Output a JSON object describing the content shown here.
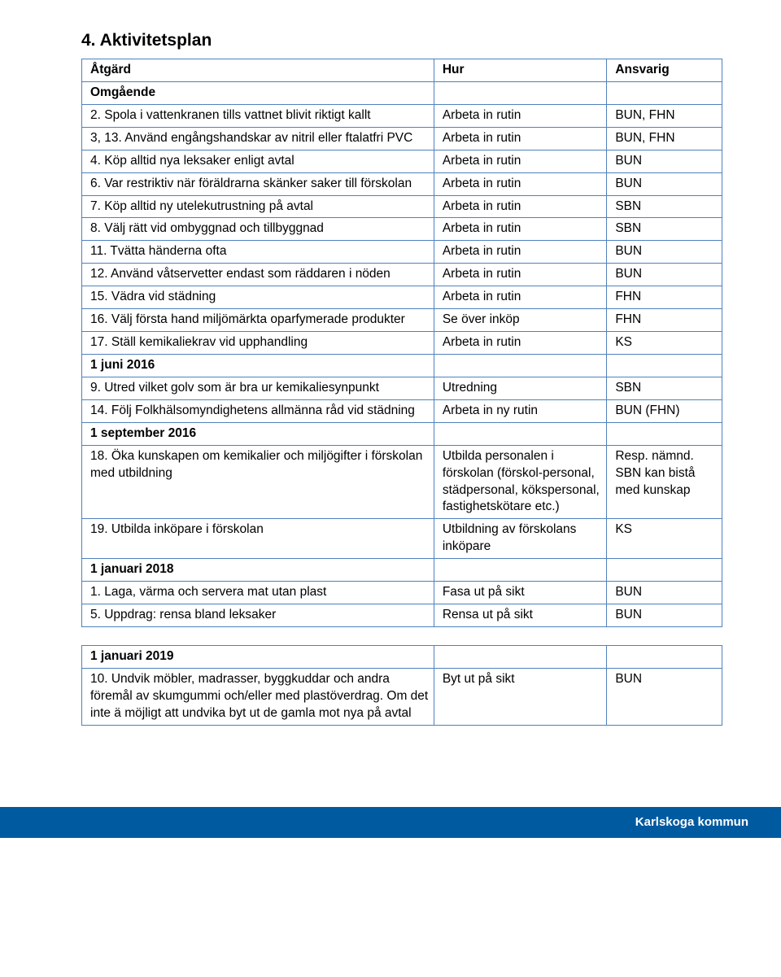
{
  "title": "4. Aktivitetsplan",
  "colors": {
    "border": "#4f81bd",
    "footer_bg": "#005aa0",
    "footer_text": "#ffffff",
    "text": "#000000"
  },
  "headers": {
    "a": "Åtgärd",
    "b": "Hur",
    "c": "Ansvarig"
  },
  "rows": [
    {
      "type": "section",
      "a": "Omgående"
    },
    {
      "a": "2. Spola i vattenkranen tills vattnet blivit riktigt kallt",
      "b": "Arbeta in rutin",
      "c": "BUN, FHN",
      "indent": true
    },
    {
      "a": "3, 13. Använd engångshandskar av nitril eller ftalatfri PVC",
      "b": "Arbeta in rutin",
      "c": "BUN, FHN",
      "indent": true
    },
    {
      "a": "4. Köp alltid nya leksaker enligt avtal",
      "b": "Arbeta in rutin",
      "c": "BUN",
      "indent": true
    },
    {
      "a": "6. Var restriktiv när föräldrarna skänker saker till förskolan",
      "b": "Arbeta in rutin",
      "c": "BUN",
      "indent": true
    },
    {
      "a": "7. Köp alltid ny utelekutrustning på avtal",
      "b": "Arbeta in rutin",
      "c": "SBN",
      "indent": true
    },
    {
      "a": "8. Välj rätt vid ombyggnad och tillbyggnad",
      "b": "Arbeta in rutin",
      "c": "SBN",
      "indent": true
    },
    {
      "a": "11. Tvätta händerna ofta",
      "b": "Arbeta in rutin",
      "c": "BUN",
      "indent": true
    },
    {
      "a": "12. Använd våtservetter endast som räddaren i nöden",
      "b": "Arbeta in rutin",
      "c": "BUN",
      "indent": true
    },
    {
      "a": "15. Vädra vid städning",
      "b": "Arbeta in rutin",
      "c": "FHN",
      "indent": true
    },
    {
      "a": "16. Välj första hand miljömärkta oparfymerade produkter",
      "b": "Se över inköp",
      "c": "FHN",
      "indent": true
    },
    {
      "a": "17. Ställ kemikaliekrav vid upphandling",
      "b": "Arbeta in rutin",
      "c": "KS",
      "indent": true
    },
    {
      "type": "section",
      "a": "1 juni 2016"
    },
    {
      "a": "9. Utred vilket golv som är bra ur kemikaliesynpunkt",
      "b": "Utredning",
      "c": "SBN",
      "indent": true
    },
    {
      "a": "14. Följ Folkhälsomyndighetens allmänna råd vid städning",
      "b": "Arbeta in ny rutin",
      "c": "BUN (FHN)",
      "indent": true
    },
    {
      "type": "section",
      "a": "1 september 2016"
    },
    {
      "a": "18. Öka kunskapen om kemikalier och miljögifter i förskolan med utbildning",
      "b": "Utbilda personalen i förskolan (förskol-personal, städpersonal, kökspersonal, fastighetskötare etc.)",
      "c": "Resp. nämnd. SBN kan bistå med kunskap",
      "indent": true
    },
    {
      "a": "19. Utbilda inköpare i förskolan",
      "b": "Utbildning av förskolans inköpare",
      "c": "KS",
      "indent": true
    },
    {
      "type": "section",
      "a": "1 januari 2018"
    },
    {
      "a": "1. Laga, värma och servera mat utan plast",
      "b": "Fasa ut på sikt",
      "c": "BUN",
      "indent": true
    },
    {
      "a": "5. Uppdrag: rensa bland leksaker",
      "b": "Rensa ut på sikt",
      "c": "BUN",
      "indent": true
    }
  ],
  "rows2": [
    {
      "type": "section",
      "a": "1 januari 2019"
    },
    {
      "a": "10. Undvik möbler, madrasser, byggkuddar och andra föremål av skumgummi och/eller med plastöverdrag. Om det inte ä möjligt att undvika byt ut de gamla mot nya på avtal",
      "b": "Byt ut på sikt",
      "c": "BUN",
      "indent": true
    }
  ],
  "footer": "Karlskoga kommun"
}
